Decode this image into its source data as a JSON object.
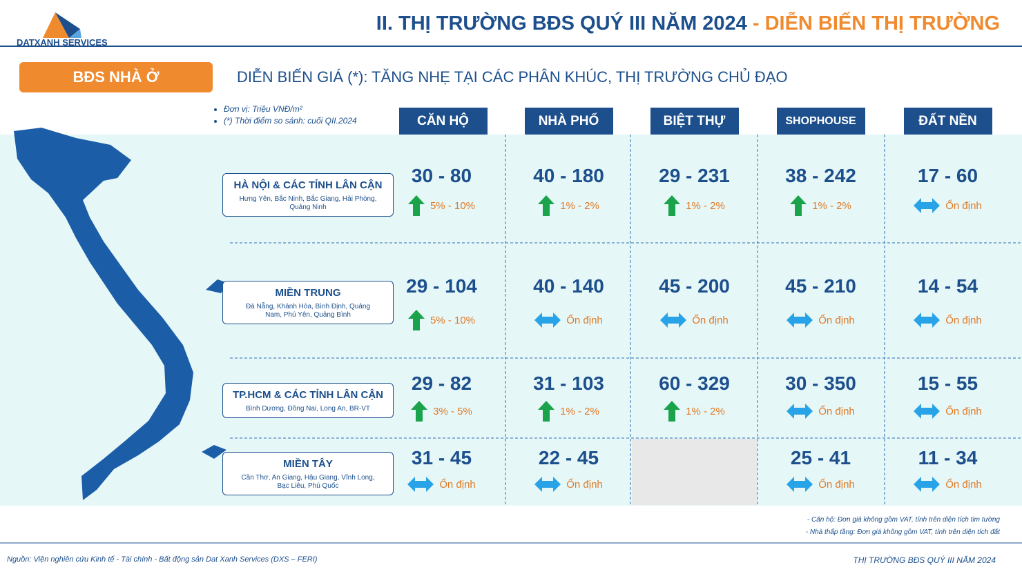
{
  "header": {
    "logo": "DATXANH SERVICES",
    "title": "II. THỊ TRƯỜNG BĐS QUÝ III NĂM 2024",
    "title_highlight": "- DIỄN BIẾN THỊ TRƯỜNG"
  },
  "section": {
    "label": "BĐS NHÀ Ở",
    "subtitle": "DIỄN BIẾN GIÁ (*): TĂNG NHẸ TẠI CÁC PHÂN KHÚC, THỊ TRƯỜNG CHỦ ĐẠO"
  },
  "notes": [
    "Đơn vị: Triệu VNĐ/m²",
    "(*) Thời điểm so sánh: cuối QII.2024"
  ],
  "table": {
    "columns": [
      "CĂN HỘ",
      "NHÀ PHỐ",
      "BIỆT THỰ",
      "SHOPHOUSE",
      "ĐẤT NỀN"
    ],
    "rows": [
      {
        "region": "HÀ NỘI & CÁC TỈNH LÂN CẬN",
        "provinces": "Hưng Yên, Bắc Ninh, Bắc Giang, Hải Phòng, Quảng Ninh",
        "cells": [
          {
            "price": "30 - 80",
            "trend": "up",
            "change": "5% - 10%"
          },
          {
            "price": "40 - 180",
            "trend": "up",
            "change": "1% - 2%"
          },
          {
            "price": "29 - 231",
            "trend": "up",
            "change": "1% - 2%"
          },
          {
            "price": "38 - 242",
            "trend": "up",
            "change": "1% - 2%"
          },
          {
            "price": "17 - 60",
            "trend": "flat",
            "change": "Ổn định"
          }
        ]
      },
      {
        "region": "MIỀN TRUNG",
        "provinces": "Đà Nẵng, Khánh Hòa, Bình Định, Quảng Nam, Phú Yên, Quảng Bình",
        "cells": [
          {
            "price": "29 - 104",
            "trend": "up",
            "change": "5% - 10%"
          },
          {
            "price": "40 - 140",
            "trend": "flat",
            "change": "Ổn định"
          },
          {
            "price": "45 - 200",
            "trend": "flat",
            "change": "Ổn định"
          },
          {
            "price": "45 - 210",
            "trend": "flat",
            "change": "Ổn định"
          },
          {
            "price": "14 - 54",
            "trend": "flat",
            "change": "Ổn định"
          }
        ]
      },
      {
        "region": "TP.HCM & CÁC TỈNH LÂN CẬN",
        "provinces": "Bình Dương, Đồng Nai, Long An, BR-VT",
        "cells": [
          {
            "price": "29 - 82",
            "trend": "up",
            "change": "3% - 5%"
          },
          {
            "price": "31 - 103",
            "trend": "up",
            "change": "1% - 2%"
          },
          {
            "price": "60 - 329",
            "trend": "up",
            "change": "1% - 2%"
          },
          {
            "price": "30 - 350",
            "trend": "flat",
            "change": "Ổn định"
          },
          {
            "price": "15 - 55",
            "trend": "flat",
            "change": "Ổn định"
          }
        ]
      },
      {
        "region": "MIỀN TÂY",
        "provinces": "Cần Thơ, An Giang, Hậu Giang, Vĩnh Long, Bạc Liêu, Phú Quốc",
        "cells": [
          {
            "price": "31 - 45",
            "trend": "flat",
            "change": "Ổn định"
          },
          {
            "price": "22 - 45",
            "trend": "flat",
            "change": "Ổn định"
          },
          null,
          {
            "price": "25 - 41",
            "trend": "flat",
            "change": "Ổn định"
          },
          {
            "price": "11 - 34",
            "trend": "flat",
            "change": "Ổn định"
          }
        ]
      }
    ]
  },
  "footnotes": [
    "- Căn hộ: Đơn giá không gồm VAT, tính trên diện tích tim tường",
    "- Nhà thấp tầng: Đơn giá không gồm VAT, tính trên diện tích đất"
  ],
  "footer": {
    "source": "Nguồn: Viện nghiên cứu Kinh tế - Tài chính - Bất động sản Dat Xanh Services (DXS – FERI)",
    "right": "THỊ TRƯỜNG BĐS QUÝ III NĂM 2024"
  }
}
